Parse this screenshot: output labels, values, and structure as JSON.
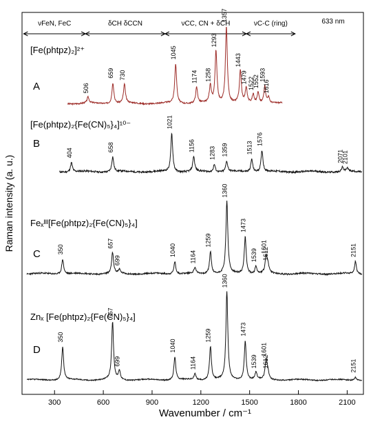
{
  "chart_data": {
    "type": "line",
    "xlabel": "Wavenumber  / cm⁻¹",
    "ylabel": "Raman intensity  (a. u.)",
    "laser": "633 nm",
    "xlim": [
      100,
      2200
    ],
    "xticks": [
      300,
      600,
      900,
      1200,
      1500,
      1800,
      2100
    ],
    "regions": [
      {
        "label": "νFeN, FeC",
        "from": 110,
        "to": 490
      },
      {
        "label": "δCH  δCCN",
        "from": 490,
        "to": 980
      },
      {
        "label": "νCC, CN + δCH",
        "from": 980,
        "to": 1480
      },
      {
        "label": "νC-C (ring)",
        "from": 1480,
        "to": 1780
      }
    ],
    "series": [
      {
        "letter": "A",
        "name": "[Fe(phtpz)₂]²⁺",
        "color": "#9c2a26",
        "xrange": [
          380,
          1700
        ],
        "peaks": [
          {
            "x": 506,
            "h": 0.12,
            "label": "506"
          },
          {
            "x": 659,
            "h": 0.42,
            "label": "659"
          },
          {
            "x": 730,
            "h": 0.38,
            "label": "730"
          },
          {
            "x": 1045,
            "h": 0.8,
            "label": "1045"
          },
          {
            "x": 1174,
            "h": 0.32,
            "label": "1174"
          },
          {
            "x": 1258,
            "h": 0.35,
            "label": "1258"
          },
          {
            "x": 1293,
            "h": 1.05,
            "label": "1293"
          },
          {
            "x": 1357,
            "h": 1.55,
            "label": "1357"
          },
          {
            "x": 1443,
            "h": 0.65,
            "label": "1443"
          },
          {
            "x": 1479,
            "h": 0.3,
            "label": "1479"
          },
          {
            "x": 1522,
            "h": 0.18,
            "label": "1522"
          },
          {
            "x": 1552,
            "h": 0.22,
            "label": "1552"
          },
          {
            "x": 1593,
            "h": 0.35,
            "label": "1593"
          },
          {
            "x": 1616,
            "h": 0.12,
            "label": "1616"
          }
        ]
      },
      {
        "letter": "B",
        "name": "[Fe(phtpz)₂{Fe(CN)₅}₄]¹⁰⁻",
        "color": "#111111",
        "xrange": [
          330,
          2190
        ],
        "peaks": [
          {
            "x": 404,
            "h": 0.22,
            "label": "404"
          },
          {
            "x": 658,
            "h": 0.35,
            "label": "658"
          },
          {
            "x": 1021,
            "h": 0.9,
            "label": "1021"
          },
          {
            "x": 1156,
            "h": 0.35,
            "label": "1156"
          },
          {
            "x": 1283,
            "h": 0.18,
            "label": "1283"
          },
          {
            "x": 1359,
            "h": 0.25,
            "label": "1359"
          },
          {
            "x": 1513,
            "h": 0.3,
            "label": "1513"
          },
          {
            "x": 1576,
            "h": 0.5,
            "label": "1576"
          },
          {
            "x": 2071,
            "h": 0.1,
            "label": "2071"
          },
          {
            "x": 2101,
            "h": 0.08,
            "label": "2101"
          }
        ]
      },
      {
        "letter": "C",
        "name": "Feₓᴵᴵᴵ[Fe(phtpz)₂{Fe(CN)₅}₄]",
        "color": "#111111",
        "xrange": [
          130,
          2190
        ],
        "peaks": [
          {
            "x": 350,
            "h": 0.3,
            "label": "350"
          },
          {
            "x": 657,
            "h": 0.42,
            "label": "657"
          },
          {
            "x": 699,
            "h": 0.08,
            "label": "699"
          },
          {
            "x": 1040,
            "h": 0.25,
            "label": "1040"
          },
          {
            "x": 1164,
            "h": 0.12,
            "label": "1164"
          },
          {
            "x": 1259,
            "h": 0.45,
            "label": "1259"
          },
          {
            "x": 1360,
            "h": 1.45,
            "label": "1360"
          },
          {
            "x": 1473,
            "h": 0.75,
            "label": "1473"
          },
          {
            "x": 1539,
            "h": 0.15,
            "label": "1539"
          },
          {
            "x": 1601,
            "h": 0.32,
            "label": "1601"
          },
          {
            "x": 1612,
            "h": 0.18,
            "label": "1612"
          },
          {
            "x": 2151,
            "h": 0.25,
            "label": "2151"
          }
        ]
      },
      {
        "letter": "D",
        "name": "Znₓ [Fe(phtpz)₂{Fe(CN)₅}₄]",
        "color": "#111111",
        "xrange": [
          130,
          2190
        ],
        "peaks": [
          {
            "x": 350,
            "h": 0.55,
            "label": "350"
          },
          {
            "x": 657,
            "h": 0.95,
            "label": "657"
          },
          {
            "x": 699,
            "h": 0.15,
            "label": "699"
          },
          {
            "x": 1040,
            "h": 0.38,
            "label": "1040"
          },
          {
            "x": 1164,
            "h": 0.1,
            "label": "1164"
          },
          {
            "x": 1259,
            "h": 0.55,
            "label": "1259"
          },
          {
            "x": 1360,
            "h": 1.45,
            "label": "1360"
          },
          {
            "x": 1473,
            "h": 0.65,
            "label": "1473"
          },
          {
            "x": 1539,
            "h": 0.12,
            "label": "1539"
          },
          {
            "x": 1601,
            "h": 0.32,
            "label": "1601"
          },
          {
            "x": 1612,
            "h": 0.12,
            "label": "1612"
          },
          {
            "x": 2151,
            "h": 0.05,
            "label": "2151"
          }
        ]
      }
    ]
  }
}
